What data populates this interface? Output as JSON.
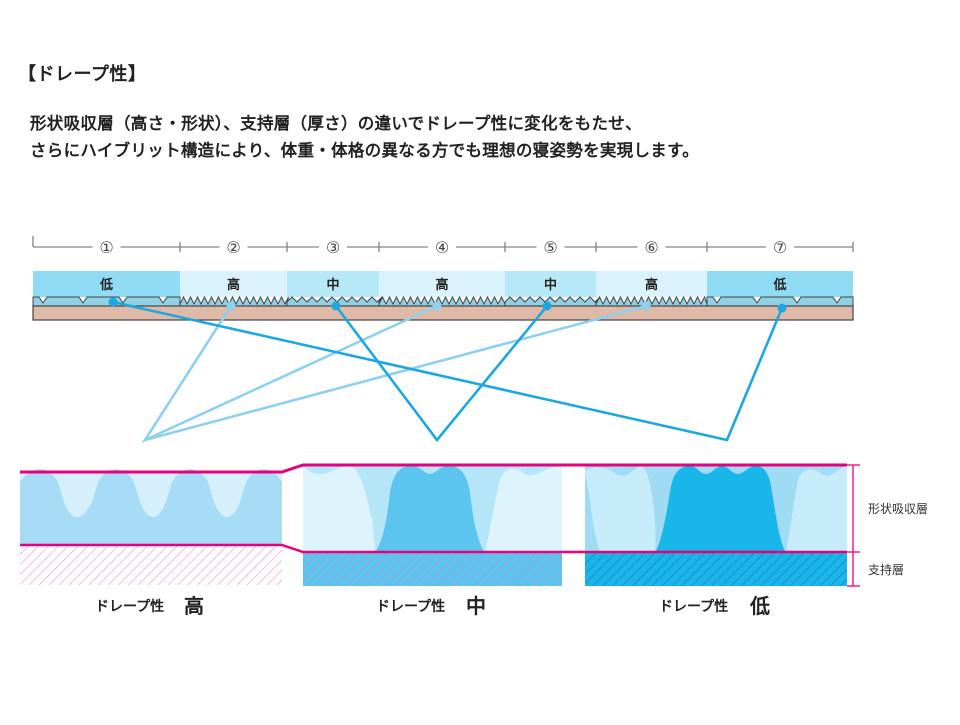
{
  "heading": "【ドレープ性】",
  "intro": [
    "形状吸収層（高さ・形状）、支持層（厚さ）の違いでドレープ性に変化をもたせ、",
    "さらにハイブリット構造により、体重・体格の異なる方でも理想の寝姿勢を実現します。"
  ],
  "zones": [
    {
      "number": "①",
      "level": "低"
    },
    {
      "number": "②",
      "level": "高"
    },
    {
      "number": "③",
      "level": "中"
    },
    {
      "number": "④",
      "level": "高"
    },
    {
      "number": "⑤",
      "level": "中"
    },
    {
      "number": "⑥",
      "level": "高"
    },
    {
      "number": "⑦",
      "level": "低"
    }
  ],
  "panels": [
    {
      "caption_prefix": "ドレープ性",
      "caption_level": "高"
    },
    {
      "caption_prefix": "ドレープ性",
      "caption_level": "中"
    },
    {
      "caption_prefix": "ドレープ性",
      "caption_level": "低"
    }
  ],
  "layer_labels": {
    "shape_absorbing": "形状吸収層",
    "support": "支持層"
  },
  "colors": {
    "level_low": "#8fdbf3",
    "level_mid": "#b7e8f8",
    "level_high": "#d9f2fb",
    "connector_dark": "#1ea7df",
    "connector_light": "#8fd0ee",
    "base": "#dfb9a8",
    "magenta": "#e6007e",
    "panel_high_shape": "#a6dcf5",
    "panel_mid_shape": "#5bc5ef",
    "panel_low_shape": "#1bbcee"
  }
}
